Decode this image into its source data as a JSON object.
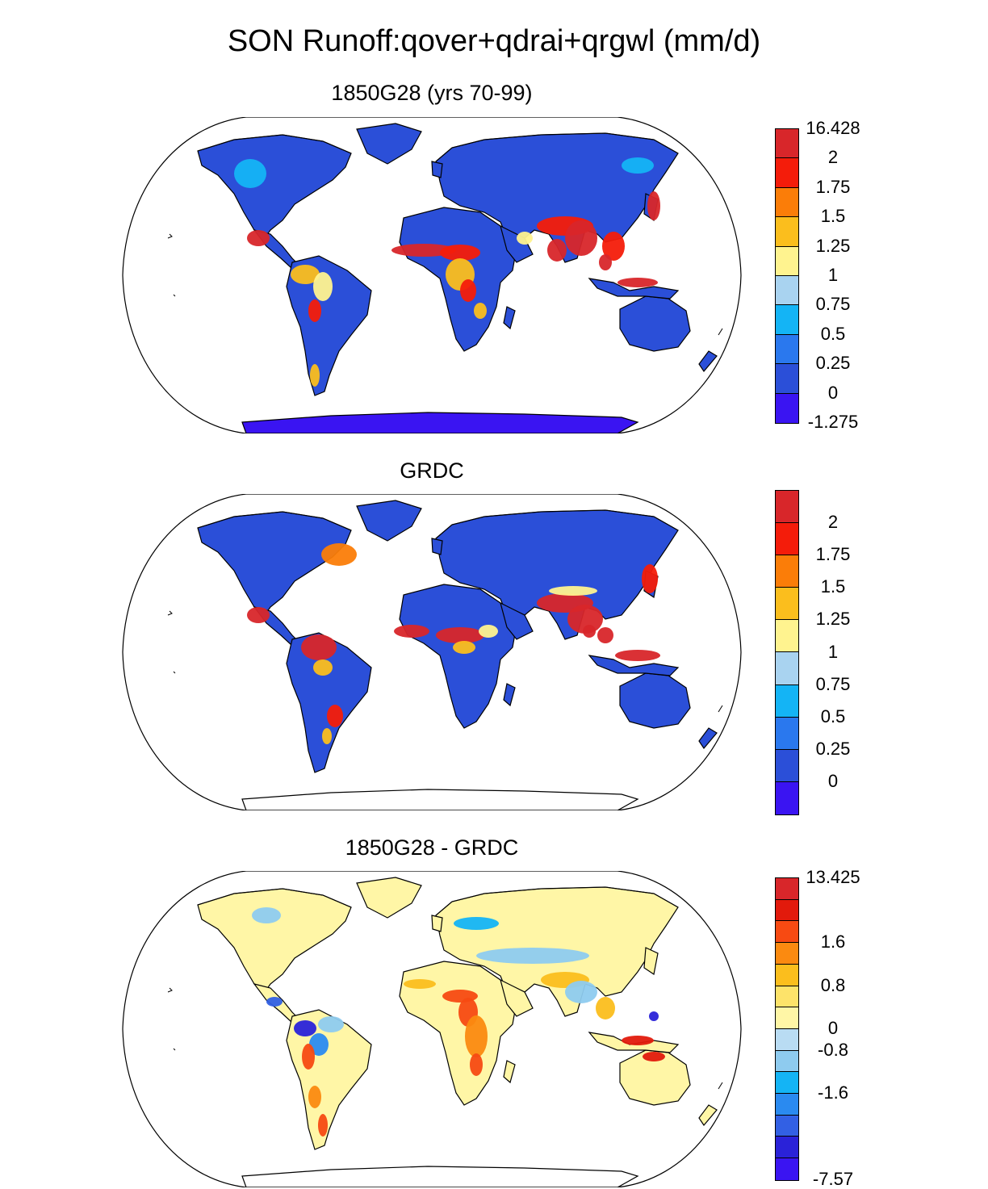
{
  "figure": {
    "title": "SON Runoff:qover+qdrai+qrgwl (mm/d)"
  },
  "panels": [
    {
      "title": "1850G28 (yrs 70-99)",
      "projection": "Robinson",
      "colors": [
        "#3a14f2",
        "#2b4fd8",
        "#2a78ee",
        "#14b4f5",
        "#a9d3f0",
        "#fff38f",
        "#fbbe1d",
        "#fb7d08",
        "#f41c0a",
        "#d8262a"
      ],
      "labels": [
        "-1.275",
        "0",
        "0.25",
        "0.5",
        "0.75",
        "1",
        "1.25",
        "1.5",
        "1.75",
        "2",
        "16.428"
      ],
      "base_color": "#2b4fd8",
      "ocean_color": "#ffffff",
      "antarctica": "#3a14f2"
    },
    {
      "title": "GRDC",
      "projection": "Robinson",
      "colors": [
        "#3a14f2",
        "#2b4fd8",
        "#2a78ee",
        "#14b4f5",
        "#a9d3f0",
        "#fff38f",
        "#fbbe1d",
        "#fb7d08",
        "#f41c0a",
        "#d8262a"
      ],
      "labels": [
        "0",
        "0.25",
        "0.5",
        "0.75",
        "1",
        "1.25",
        "1.5",
        "1.75",
        "2"
      ],
      "base_color": "#2b4fd8",
      "ocean_color": "#ffffff",
      "antarctica": "#ffffff"
    },
    {
      "title": "1850G28 - GRDC",
      "projection": "Robinson",
      "colors": [
        "#3a14f2",
        "#2a22d8",
        "#3260e4",
        "#2a8af0",
        "#14b4f5",
        "#8ecbef",
        "#b9dcf3",
        "#fff6a6",
        "#fde36a",
        "#fbbe1d",
        "#fb8a10",
        "#f74a12",
        "#e21a0c",
        "#d8262a"
      ],
      "labels": [
        "-7.57",
        "-1.6",
        "-0.8",
        "0",
        "0.8",
        "1.6",
        "13.425"
      ],
      "base_color": "#fff6a6",
      "ocean_color": "#ffffff",
      "antarctica": "#ffffff"
    }
  ],
  "chart_data": [
    {
      "type": "heatmap",
      "title": "1850G28 (yrs 70-99)",
      "colorbar_levels": [
        -1.275,
        0,
        0.25,
        0.5,
        0.75,
        1,
        1.25,
        1.5,
        1.75,
        2,
        16.428
      ],
      "dominant_value_range": [
        0,
        0.25
      ],
      "high_regions": [
        "Gulf of Guinea / Central Africa",
        "India",
        "Southeast Asia",
        "Amazon",
        "Central America",
        "Japan"
      ]
    },
    {
      "type": "heatmap",
      "title": "GRDC",
      "colorbar_levels": [
        0,
        0.25,
        0.5,
        0.75,
        1,
        1.25,
        1.5,
        1.75,
        2
      ],
      "dominant_value_range": [
        0,
        0.25
      ],
      "high_regions": [
        "Central Africa",
        "India",
        "Southeast Asia",
        "Amazon",
        "Central America",
        "Eastern North America"
      ]
    },
    {
      "type": "heatmap",
      "title": "1850G28 - GRDC",
      "colorbar_levels": [
        -7.57,
        -1.6,
        -0.8,
        0,
        0.8,
        1.6,
        13.425
      ],
      "dominant_value_range": [
        0,
        0.4
      ],
      "high_regions": [
        "West/Central Africa",
        "Southern Africa",
        "India",
        "Indonesia"
      ],
      "low_regions": [
        "Amazon",
        "Central America",
        "Northern Eurasia"
      ]
    }
  ]
}
